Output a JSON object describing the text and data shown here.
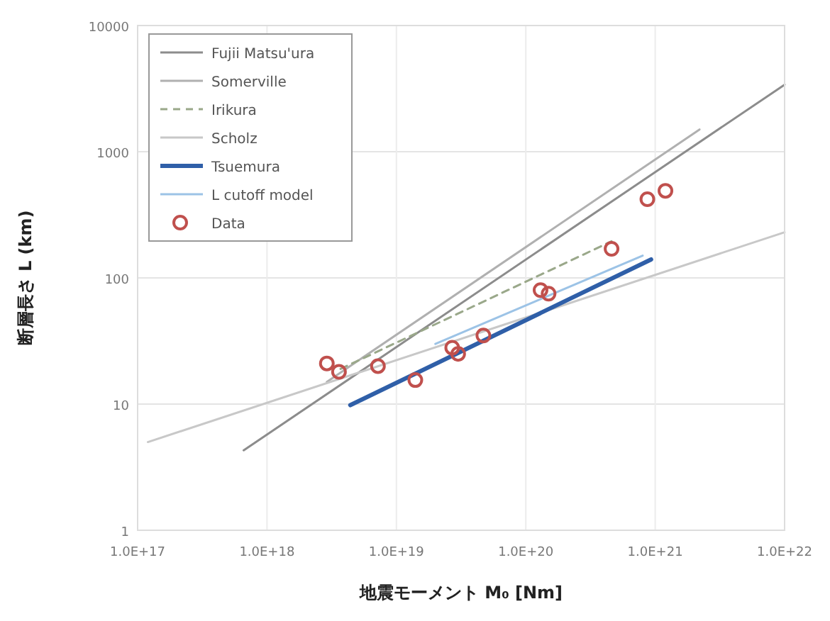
{
  "chart_data": {
    "type": "line",
    "xlabel": "地震モーメント M₀ [Nm]",
    "ylabel": "断層長さ L (km)",
    "log": "xy",
    "grid": true,
    "legend": "top left",
    "xlim": [
      1e+17,
      1e+22
    ],
    "ylim": [
      1,
      10000
    ],
    "xticks": [
      {
        "value": 1e+17,
        "label": "1.0E+17"
      },
      {
        "value": 1e+18,
        "label": "1.0E+18"
      },
      {
        "value": 1e+19,
        "label": "1.0E+19"
      },
      {
        "value": 1e+20,
        "label": "1.0E+20"
      },
      {
        "value": 1e+21,
        "label": "1.0E+21"
      },
      {
        "value": 1e+22,
        "label": "1.0E+22"
      }
    ],
    "yticks": [
      1,
      10,
      100,
      1000,
      10000
    ],
    "series": [
      {
        "name": "Fujii Matsu'ura",
        "color": "#8c8c8c",
        "line_style": "solid",
        "x": [
          6.6e+17,
          1e+22
        ],
        "values": [
          4.3,
          3400
        ]
      },
      {
        "name": "Somerville",
        "color": "#b0b0b0",
        "line_style": "solid",
        "x": [
          2.9e+18,
          2.2e+21
        ],
        "values": [
          15,
          1500
        ]
      },
      {
        "name": "Irikura",
        "color": "#9aa88a",
        "line_style": "dashed",
        "x": [
          3.7e+18,
          4.6e+20
        ],
        "values": [
          19,
          195
        ]
      },
      {
        "name": "Scholz",
        "color": "#c8c8c8",
        "line_style": "solid",
        "x": [
          1.2e+17,
          1e+22
        ],
        "values": [
          5,
          230
        ]
      },
      {
        "name": "Tsuemura",
        "color": "#2f5fa8",
        "line_style": "solid",
        "x": [
          4.4e+18,
          9.3e+20
        ],
        "values": [
          9.8,
          140
        ]
      },
      {
        "name": "L cutoff model",
        "color": "#9cc3e6",
        "line_style": "solid",
        "x": [
          2e+19,
          8e+20
        ],
        "values": [
          30,
          150
        ]
      },
      {
        "name": "Data",
        "type": "scatter",
        "marker": "circle",
        "color": "#c0504d",
        "x": [
          2.9e+18,
          3.6e+18,
          7.2e+18,
          1.4e+19,
          2.7e+19,
          3e+19,
          4.7e+19,
          1.3e+20,
          1.5e+20,
          4.6e+20,
          8.7e+20,
          1.2e+21
        ],
        "values": [
          21,
          18,
          20,
          15.5,
          28,
          25,
          35,
          80,
          75,
          170,
          420,
          490
        ]
      }
    ]
  }
}
